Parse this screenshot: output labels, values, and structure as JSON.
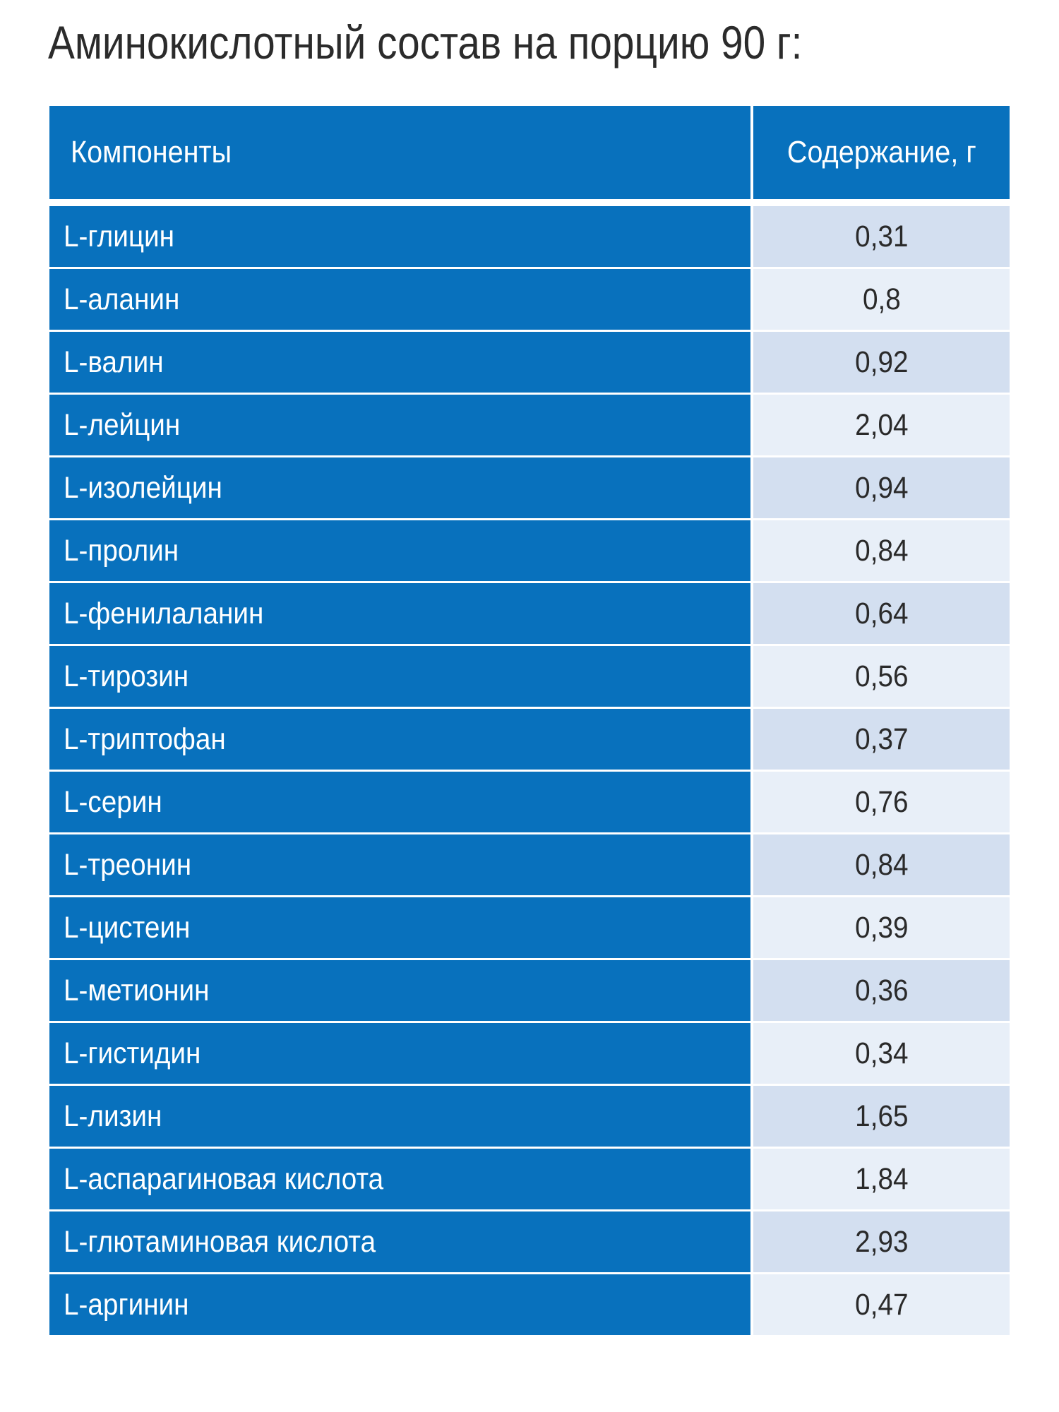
{
  "title": "Аминокислотный состав на порцию 90 г:",
  "table": {
    "headers": {
      "component": "Компоненты",
      "content": "Содержание, г"
    },
    "rows": [
      {
        "name": "L-глицин",
        "value": "0,31"
      },
      {
        "name": "L-аланин",
        "value": "0,8"
      },
      {
        "name": "L-валин",
        "value": "0,92"
      },
      {
        "name": "L-лейцин",
        "value": "2,04"
      },
      {
        "name": "L-изолейцин",
        "value": "0,94"
      },
      {
        "name": "L-пролин",
        "value": "0,84"
      },
      {
        "name": "L-фенилаланин",
        "value": "0,64"
      },
      {
        "name": "L-тирозин",
        "value": "0,56"
      },
      {
        "name": "L-триптофан",
        "value": "0,37"
      },
      {
        "name": "L-серин",
        "value": "0,76"
      },
      {
        "name": "L-треонин",
        "value": "0,84"
      },
      {
        "name": "L-цистеин",
        "value": "0,39"
      },
      {
        "name": "L-метионин",
        "value": "0,36"
      },
      {
        "name": "L-гистидин",
        "value": "0,34"
      },
      {
        "name": "L-лизин",
        "value": "1,65"
      },
      {
        "name": "L-аспарагиновая кислота",
        "value": "1,84"
      },
      {
        "name": "L-глютаминовая кислота",
        "value": "2,93"
      },
      {
        "name": "L-аргинин",
        "value": "0,47"
      }
    ]
  },
  "colors": {
    "header_blue": "#0871bd",
    "value_odd": "#d3dff0",
    "value_even": "#e8eff8"
  }
}
